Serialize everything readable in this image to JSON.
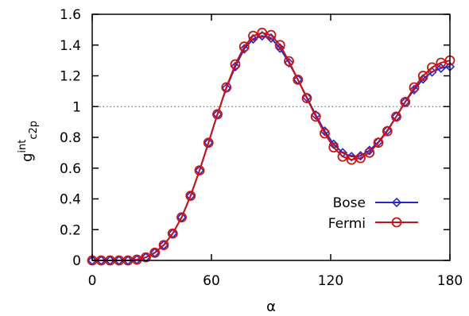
{
  "chart_data": {
    "type": "line",
    "xlabel": "α",
    "ylabel": {
      "base": "g",
      "sup": "int",
      "sub": "c2p"
    },
    "xlim": [
      0,
      180
    ],
    "ylim": [
      0,
      1.6
    ],
    "xticks": [
      0,
      60,
      120,
      180
    ],
    "yticks": [
      0,
      0.2,
      0.4,
      0.6,
      0.8,
      1,
      1.2,
      1.4,
      1.6
    ],
    "ytick_labels": [
      "0",
      "0.2",
      "0.4",
      "0.6",
      "0.8",
      "1",
      "1.2",
      "1.4",
      "1.6"
    ],
    "reference_line": {
      "y": 1,
      "style": "dotted"
    },
    "grid": false,
    "legend_position": "bottom-right",
    "x": [
      0,
      4.5,
      9,
      13.5,
      18,
      22.5,
      27,
      31.5,
      36,
      40.5,
      45,
      49.5,
      54,
      58.5,
      63,
      67.5,
      72,
      76.5,
      81,
      85.5,
      90,
      94.5,
      99,
      103.5,
      108,
      112.5,
      117,
      121.5,
      126,
      130.5,
      135,
      139.5,
      144,
      148.5,
      153,
      157.5,
      162,
      166.5,
      171,
      175.5,
      180
    ],
    "series": [
      {
        "name": "Bose",
        "color": "#2828c8",
        "marker": "diamond",
        "values": [
          0.0,
          0.0,
          0.0,
          0.0,
          0.0,
          0.005,
          0.02,
          0.05,
          0.1,
          0.175,
          0.28,
          0.42,
          0.585,
          0.765,
          0.95,
          1.12,
          1.26,
          1.375,
          1.44,
          1.46,
          1.445,
          1.38,
          1.285,
          1.175,
          1.06,
          0.945,
          0.84,
          0.755,
          0.7,
          0.675,
          0.68,
          0.715,
          0.77,
          0.845,
          0.935,
          1.03,
          1.11,
          1.18,
          1.225,
          1.25,
          1.26
        ]
      },
      {
        "name": "Fermi",
        "color": "#c81414",
        "marker": "circle",
        "values": [
          0.0,
          0.0,
          0.0,
          0.0,
          0.0,
          0.005,
          0.02,
          0.05,
          0.1,
          0.175,
          0.28,
          0.42,
          0.585,
          0.765,
          0.95,
          1.125,
          1.275,
          1.39,
          1.46,
          1.48,
          1.465,
          1.4,
          1.295,
          1.175,
          1.055,
          0.935,
          0.825,
          0.735,
          0.675,
          0.655,
          0.665,
          0.7,
          0.765,
          0.84,
          0.935,
          1.03,
          1.125,
          1.2,
          1.255,
          1.285,
          1.3
        ]
      }
    ]
  }
}
